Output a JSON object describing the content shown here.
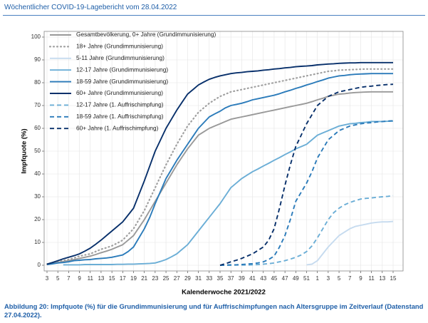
{
  "header": "Wöchentlicher COVID-19-Lagebericht vom 28.04.2022",
  "caption": "Abbildung 20: Impfquote (%) für die Grundimmunisierung und für Auffrischimpfungen nach Altersgruppe im Zeitverlauf (Datenstand 27.04.2022).",
  "chart_data": {
    "type": "line",
    "x_label": "Kalenderwoche 2021/2022",
    "y_label": "Impfquote (%)",
    "categories": [
      "3",
      null,
      "5",
      null,
      "7",
      null,
      "9",
      null,
      "11",
      null,
      "13",
      null,
      "15",
      null,
      "17",
      null,
      "19",
      null,
      "21",
      null,
      "23",
      null,
      "25",
      null,
      "27",
      null,
      "29",
      null,
      "31",
      null,
      "33",
      null,
      "35",
      null,
      "37",
      null,
      "39",
      null,
      "41",
      null,
      "43",
      null,
      "45",
      null,
      "47",
      null,
      "49",
      null,
      "51",
      null,
      "1",
      null,
      "3",
      null,
      "5",
      null,
      "7",
      null,
      "9",
      null,
      "11",
      null,
      "13",
      null,
      "15"
    ],
    "ylim": [
      -2.5,
      102.5
    ],
    "yticks": [
      0,
      10,
      20,
      30,
      40,
      50,
      60,
      70,
      80,
      90,
      100
    ],
    "grid": true,
    "legend": "top-left",
    "series": [
      {
        "name": "Gesamtbevölkerung, 0+ Jahre (Grundimmunisierung)",
        "color": "#999999",
        "style": "solid",
        "values": [
          0.5,
          0.8,
          1.2,
          1.6,
          2,
          2.5,
          3,
          3.5,
          4,
          4.7,
          5.5,
          6.2,
          7,
          8,
          9,
          11,
          13,
          16.5,
          20,
          24,
          28,
          32,
          36,
          40,
          44,
          47.5,
          51,
          54,
          57,
          58.5,
          60,
          61,
          62,
          63,
          64,
          64.5,
          65,
          65.5,
          66,
          66.5,
          67,
          67.5,
          68,
          68.5,
          69,
          69.5,
          70,
          70.5,
          71,
          71.7,
          72.5,
          73.2,
          74,
          74.5,
          75,
          75.2,
          75.5,
          75.7,
          75.8,
          75.9,
          76,
          76,
          76,
          76,
          76
        ]
      },
      {
        "name": "18+ Jahre (Grundimmunisierung)",
        "color": "#a0a0a0",
        "style": "dotted",
        "values": [
          0.5,
          1,
          1.7,
          2.1,
          2.5,
          3.2,
          4,
          4.5,
          5,
          6,
          7,
          7.7,
          8.5,
          9.7,
          11,
          13.5,
          16,
          20,
          24,
          29,
          34,
          39,
          44,
          48.5,
          53,
          57,
          61,
          64,
          67,
          69,
          71,
          72.5,
          74,
          75,
          76,
          76.5,
          77,
          77.5,
          78,
          78.5,
          79,
          79.5,
          80,
          80.5,
          81,
          81.5,
          82,
          82.5,
          83,
          83.5,
          84,
          84.5,
          85,
          85.2,
          85.5,
          85.6,
          85.7,
          85.8,
          85.9,
          86,
          86,
          86,
          86,
          86,
          86
        ]
      },
      {
        "name": "5-11 Jahre (Grundimmunisierung)",
        "color": "#c6dbef",
        "style": "solid",
        "values": [
          null,
          null,
          null,
          null,
          null,
          null,
          null,
          null,
          null,
          null,
          null,
          null,
          null,
          null,
          null,
          null,
          null,
          null,
          null,
          null,
          null,
          null,
          null,
          null,
          null,
          null,
          null,
          null,
          null,
          null,
          null,
          null,
          null,
          null,
          null,
          null,
          null,
          null,
          null,
          null,
          null,
          null,
          null,
          null,
          null,
          null,
          null,
          null,
          0.2,
          0.5,
          2,
          5,
          8,
          10.5,
          13,
          14.5,
          16,
          17,
          17.5,
          18,
          18.5,
          18.8,
          19,
          19,
          19.2
        ]
      },
      {
        "name": "12-17 Jahre (Grundimmunisierung)",
        "color": "#6baed6",
        "style": "solid",
        "values": [
          null,
          null,
          null,
          0.2,
          0.2,
          0.2,
          0.2,
          0.3,
          0.3,
          0.3,
          0.3,
          0.3,
          0.3,
          0.4,
          0.4,
          0.5,
          0.5,
          0.6,
          0.7,
          0.8,
          1,
          1.7,
          2.5,
          3.7,
          5,
          7,
          9,
          12,
          15,
          18,
          21,
          24,
          27,
          30.5,
          34,
          36,
          38,
          39.5,
          41,
          42.2,
          43.5,
          44.7,
          46,
          47.2,
          48.5,
          49.7,
          51,
          52,
          53,
          55,
          57,
          58,
          59,
          60,
          61,
          61.5,
          62,
          62.2,
          62.5,
          62.7,
          63,
          63,
          63,
          63.1,
          63.2
        ]
      },
      {
        "name": "18-59 Jahre (Grundimmunisierung)",
        "color": "#2b7bba",
        "style": "solid",
        "values": [
          0.3,
          0.6,
          1,
          1.2,
          1.5,
          2,
          2.2,
          2.4,
          2.5,
          2.8,
          3,
          3.2,
          3.5,
          4,
          4.5,
          6,
          8,
          12,
          16,
          21,
          27,
          32.5,
          38,
          42,
          46,
          49.5,
          53,
          56.5,
          60,
          62.5,
          65,
          66.3,
          67.5,
          69,
          70,
          70.5,
          71,
          71.7,
          72.5,
          73,
          73.5,
          74,
          74.5,
          75.2,
          76,
          76.7,
          77.5,
          78.2,
          79,
          79.7,
          80.5,
          81.2,
          82,
          82.5,
          83,
          83.2,
          83.5,
          83.7,
          83.8,
          83.9,
          84,
          84,
          84,
          84,
          84
        ]
      },
      {
        "name": "60+ Jahre (Grundimmunisierung)",
        "color": "#08306b",
        "style": "solid",
        "values": [
          0.5,
          1.2,
          2,
          2.8,
          3.5,
          4.2,
          5,
          6.2,
          7.5,
          9.2,
          11,
          13,
          15,
          17,
          19,
          22,
          25,
          31,
          37,
          43.5,
          50,
          55,
          60,
          64,
          68,
          71.5,
          75,
          77,
          79,
          80.3,
          81.5,
          82.3,
          83,
          83.5,
          84,
          84.3,
          84.5,
          84.8,
          85,
          85.2,
          85.5,
          85.7,
          86,
          86.2,
          86.5,
          86.7,
          87,
          87.2,
          87.3,
          87.5,
          87.8,
          88,
          88.2,
          88.3,
          88.5,
          88.6,
          88.7,
          88.7,
          88.8,
          88.8,
          88.8,
          88.8,
          88.8,
          88.8,
          88.8
        ]
      },
      {
        "name": "12-17 Jahre (1. Auffrischimpfung)",
        "color": "#6baed6",
        "style": "dashed",
        "values": [
          null,
          null,
          null,
          null,
          null,
          null,
          null,
          null,
          null,
          null,
          null,
          null,
          null,
          null,
          null,
          null,
          null,
          null,
          null,
          null,
          null,
          null,
          null,
          null,
          null,
          null,
          null,
          null,
          null,
          null,
          null,
          null,
          0,
          0,
          0,
          0.1,
          0.1,
          0.1,
          0.2,
          0.3,
          0.5,
          0.7,
          1,
          1.5,
          2,
          2.7,
          3.5,
          4.5,
          6,
          8.5,
          12,
          16,
          20,
          23,
          25,
          26.5,
          27.5,
          28.3,
          29,
          29.3,
          29.5,
          29.8,
          30,
          30.2,
          30.5
        ]
      },
      {
        "name": "18-59 Jahre (1. Auffrischimpfung)",
        "color": "#2b7bba",
        "style": "dashed",
        "values": [
          null,
          null,
          null,
          null,
          null,
          null,
          null,
          null,
          null,
          null,
          null,
          null,
          null,
          null,
          null,
          null,
          null,
          null,
          null,
          null,
          null,
          null,
          null,
          null,
          null,
          null,
          null,
          null,
          null,
          null,
          null,
          null,
          0,
          0.1,
          0.2,
          0.2,
          0.3,
          0.5,
          0.7,
          1,
          1.5,
          2.5,
          4,
          8,
          13,
          20,
          28,
          32,
          36,
          41,
          47,
          51,
          55,
          57,
          59,
          60,
          61,
          61.5,
          62,
          62.3,
          62.5,
          62.8,
          63,
          63.2,
          63.3
        ]
      },
      {
        "name": "60+ Jahre (1. Auffrischimpfung)",
        "color": "#08306b",
        "style": "dashed",
        "values": [
          null,
          null,
          null,
          null,
          null,
          null,
          null,
          null,
          null,
          null,
          null,
          null,
          null,
          null,
          null,
          null,
          null,
          null,
          null,
          null,
          null,
          null,
          null,
          null,
          null,
          null,
          null,
          null,
          null,
          null,
          null,
          null,
          0,
          0.7,
          1.5,
          2.2,
          3,
          4,
          5,
          6.5,
          8,
          11,
          16,
          25,
          35,
          44,
          52,
          57,
          62,
          66,
          70,
          72,
          74,
          75,
          76,
          76.5,
          77,
          77.5,
          78,
          78.3,
          78.5,
          78.8,
          79,
          79.2,
          79.3
        ]
      }
    ]
  }
}
